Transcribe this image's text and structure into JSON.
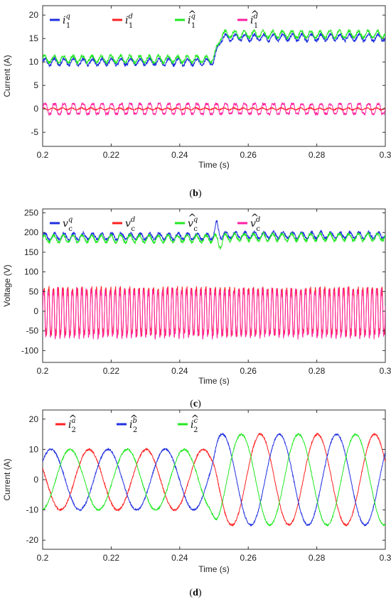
{
  "captions": {
    "b": "(b)",
    "c": "(c)",
    "d": "(d)"
  },
  "paren_open": "(",
  "paren_close": ")",
  "colors": {
    "blue": "#1f2fe0",
    "red": "#ff2020",
    "green": "#22e822",
    "magenta": "#ff20a0",
    "axis": "#333333",
    "grid": "#e6e6e6"
  },
  "chart_data": [
    {
      "id": "b",
      "type": "line",
      "xlabel": "Time (s)",
      "ylabel": "Current (A)",
      "xlim": [
        0.2,
        0.3
      ],
      "ylim": [
        -8,
        22
      ],
      "xticks": [
        0.2,
        0.22,
        0.24,
        0.26,
        0.28,
        0.3
      ],
      "yticks": [
        -5,
        0,
        5,
        10,
        15,
        20
      ],
      "grid": false,
      "legend_position": "top",
      "series": [
        {
          "name": "i",
          "sup": "q",
          "sub": "1",
          "hat": false,
          "color": "#1f2fe0",
          "description": "q-axis current, ~10 A before step at t=0.25 s, ~15 A after",
          "x": [
            0.2,
            0.25,
            0.252,
            0.3
          ],
          "y": [
            10,
            10,
            15.2,
            15.2
          ]
        },
        {
          "name": "i",
          "sup": "d",
          "sub": "1",
          "hat": false,
          "color": "#ff2020",
          "description": "d-axis current, ~0 A with ripple",
          "x": [
            0.2,
            0.3
          ],
          "y": [
            0,
            0
          ]
        },
        {
          "name": "i",
          "sup": "q",
          "sub": "1",
          "hat": true,
          "color": "#22e822",
          "description": "estimated q-axis current, ~10.5 A before step, ~15.8 A after",
          "x": [
            0.2,
            0.25,
            0.252,
            0.3
          ],
          "y": [
            10.5,
            10.5,
            15.8,
            15.8
          ]
        },
        {
          "name": "i",
          "sup": "d",
          "sub": "1",
          "hat": true,
          "color": "#ff20a0",
          "description": "estimated d-axis current, oscillating about 0 A, amplitude ~1.3 A",
          "x": [
            0.2,
            0.3
          ],
          "y": [
            0,
            0
          ]
        }
      ]
    },
    {
      "id": "c",
      "type": "line",
      "xlabel": "Time (s)",
      "ylabel": "Voltage (V)",
      "xlim": [
        0.2,
        0.3
      ],
      "ylim": [
        -130,
        260
      ],
      "xticks": [
        0.2,
        0.22,
        0.24,
        0.26,
        0.28,
        0.3
      ],
      "yticks": [
        -100,
        -50,
        0,
        50,
        100,
        150,
        200,
        250
      ],
      "grid": false,
      "legend_position": "top",
      "series": [
        {
          "name": "v",
          "sup": "q",
          "sub": "c",
          "hat": false,
          "color": "#1f2fe0",
          "description": "q-axis capacitor voltage ~190 V, spike near t=0.251 s",
          "x": [
            0.2,
            0.25,
            0.251,
            0.3
          ],
          "y": [
            190,
            190,
            220,
            195
          ]
        },
        {
          "name": "v",
          "sup": "d",
          "sub": "c",
          "hat": false,
          "color": "#ff2020",
          "description": "d-axis capacitor voltage, oscillating about 0 V",
          "x": [
            0.2,
            0.3
          ],
          "y": [
            0,
            0
          ]
        },
        {
          "name": "v",
          "sup": "q",
          "sub": "c",
          "hat": true,
          "color": "#22e822",
          "description": "estimated q-axis voltage ~185 V",
          "x": [
            0.2,
            0.3
          ],
          "y": [
            185,
            190
          ]
        },
        {
          "name": "v",
          "sup": "d",
          "sub": "c",
          "hat": true,
          "color": "#ff20a0",
          "description": "estimated d-axis voltage, oscillating about -5 V with amplitude ~65 V",
          "x": [
            0.2,
            0.3
          ],
          "y": [
            -5,
            -5
          ]
        }
      ]
    },
    {
      "id": "d",
      "type": "line",
      "xlabel": "Time (s)",
      "ylabel": "Current (A)",
      "xlim": [
        0.2,
        0.3
      ],
      "ylim": [
        -23,
        23
      ],
      "xticks": [
        0.2,
        0.22,
        0.24,
        0.26,
        0.28,
        0.3
      ],
      "yticks": [
        -20,
        -10,
        0,
        10,
        20
      ],
      "grid": false,
      "legend_position": "top",
      "series": [
        {
          "name": "i",
          "sup": "a",
          "sub": "2",
          "hat": true,
          "color": "#ff2020",
          "description": "phase a current, 60 Hz, amplitude 10 A before t=0.25 s and 15 A after",
          "amplitude_before": 10,
          "amplitude_after": 15,
          "step_time": 0.25,
          "frequency_hz": 60
        },
        {
          "name": "i",
          "sup": "b",
          "sub": "2",
          "hat": true,
          "color": "#1f2fe0",
          "description": "phase b current, shifted -120 deg",
          "amplitude_before": 10,
          "amplitude_after": 15,
          "step_time": 0.25,
          "frequency_hz": 60
        },
        {
          "name": "i",
          "sup": "c",
          "sub": "2",
          "hat": true,
          "color": "#22e822",
          "description": "phase c current, shifted +120 deg",
          "amplitude_before": 10,
          "amplitude_after": 15,
          "step_time": 0.25,
          "frequency_hz": 60
        }
      ]
    }
  ]
}
